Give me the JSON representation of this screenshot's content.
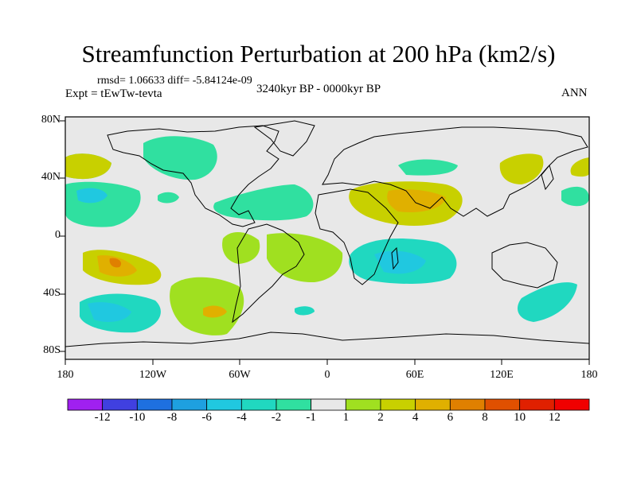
{
  "title": "Streamfunction Perturbation at 200 hPa (km2/s)",
  "stats": {
    "rmsd_text": "rmsd= 1.06633 diff= -5.84124e-09"
  },
  "experiment": "Expt = tEwTw-tevta",
  "period": "3240kyr BP - 0000kyr BP",
  "season": "ANN",
  "lat_labels": [
    "80N",
    "40N",
    "0",
    "40S",
    "80S"
  ],
  "lon_labels": [
    "180",
    "120W",
    "60W",
    "0",
    "60E",
    "120E",
    "180"
  ],
  "colorbar": {
    "labels": [
      "-12",
      "-10",
      "-8",
      "-6",
      "-4",
      "-2",
      "-1",
      "1",
      "2",
      "4",
      "6",
      "8",
      "10",
      "12"
    ],
    "colors": [
      "#a020f0",
      "#4040e0",
      "#1e70e0",
      "#1ea0e0",
      "#20c8e0",
      "#20d8c0",
      "#30e0a0",
      "#e8e8e8",
      "#a0e020",
      "#c8d000",
      "#e0b000",
      "#e08000",
      "#e05000",
      "#e02000",
      "#f00000"
    ]
  },
  "map_colors": {
    "background": "#e8e8e8",
    "coast": "#000000"
  },
  "anomaly_regions": [
    {
      "name": "north-pacific-negative",
      "level": "-1",
      "color": "#30e0a0"
    },
    {
      "name": "north-atlantic-negative",
      "level": "-1",
      "color": "#30e0a0"
    },
    {
      "name": "indian-ocean-negative",
      "level": "-2",
      "color": "#20d8c0"
    },
    {
      "name": "south-pacific-negative",
      "level": "-2",
      "color": "#20d8c0"
    },
    {
      "name": "southeast-pacific-positive",
      "level": "4",
      "color": "#c8d000"
    },
    {
      "name": "middle-east-positive",
      "level": "4",
      "color": "#c8d000"
    },
    {
      "name": "south-america-positive",
      "level": "2",
      "color": "#a0e020"
    }
  ]
}
